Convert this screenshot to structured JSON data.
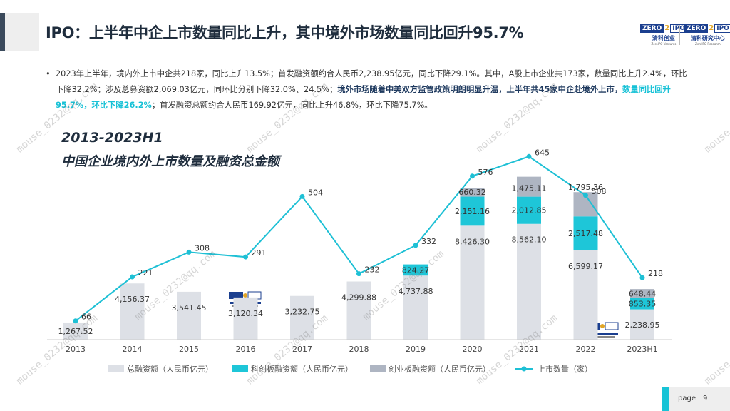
{
  "header": {
    "title": "IPO：上半年中企上市数量同比上升，其中境外市场数量同比回升95.7%"
  },
  "logos": {
    "zero": "ZERO",
    "ipo": "IPO",
    "left_cn": "清科创业",
    "left_en": "ZeroIPO Ventures",
    "right_cn": "清科研究中心",
    "right_en": "ZeroIPO Research"
  },
  "bullet": {
    "dot": "•",
    "part1": "2023年上半年，境内外上市中企共218家，同比上升13.5%；首发融资额约合人民币2,238.95亿元，同比下降29.1%。其中，A股上市企业共173家，数量同比上升2.4%，环比下降32.2%；涉及总募资额2,069.03亿元，同环比分别下降32.0%、24.5%；",
    "part2": "境外市场随着中美双方监管政策明朗明显升温，上半年共45家中企赴境外上市，",
    "part3": "数量同比回升95.7%，环比下降26.2%",
    "part4": "；首发融资总额约合人民币169.92亿元，同比上升46.8%，环比下降75.7%。"
  },
  "chart_data": {
    "type": "bar",
    "title": "2013-2023H1",
    "subtitle": "中国企业境内外上市数量及融资总金额",
    "categories": [
      "2013",
      "2014",
      "2015",
      "2016",
      "2017",
      "2018",
      "2019",
      "2020",
      "2021",
      "2022",
      "2023H1"
    ],
    "series": [
      {
        "name": "总融资额（人民币亿元）",
        "type": "bar",
        "stack": "funding",
        "color": "#dde0e6",
        "values": [
          1267.52,
          4156.37,
          3541.45,
          3120.34,
          3232.75,
          4299.88,
          4737.88,
          8426.3,
          8562.1,
          6599.17,
          2238.95
        ]
      },
      {
        "name": "科创板融资额（人民币亿元）",
        "type": "bar",
        "stack": "funding",
        "color": "#1ec6d8",
        "values": [
          null,
          null,
          null,
          null,
          null,
          null,
          824.27,
          2151.16,
          2012.85,
          2517.48,
          853.35
        ]
      },
      {
        "name": "创业板融资额（人民币亿元）",
        "type": "bar",
        "stack": "funding",
        "color": "#aeb5c2",
        "values": [
          null,
          null,
          null,
          null,
          null,
          null,
          null,
          660.32,
          1475.11,
          1795.36,
          648.44
        ]
      },
      {
        "name": "上市数量（家）",
        "type": "line",
        "color": "#1ec0d5",
        "values": [
          66,
          221,
          308,
          291,
          504,
          232,
          332,
          576,
          645,
          508,
          218
        ]
      }
    ],
    "bar_value_labels": [
      "1,267.52",
      "4,156.37",
      "3,541.45",
      "3,120.34",
      "3,232.75",
      "4,299.88",
      "4,737.88",
      "8,426.30",
      "8,562.10",
      "6,599.17",
      "2,238.95"
    ],
    "star_labels": [
      "",
      "",
      "",
      "",
      "",
      "",
      "824.27",
      "2,151.16",
      "2,012.85",
      "2,517.48",
      "853.35"
    ],
    "gem_labels": [
      "",
      "",
      "",
      "",
      "",
      "",
      "",
      "660.32",
      "1,475.11",
      "1,795.36",
      "648.44"
    ],
    "line_labels": [
      "66",
      "221",
      "308",
      "291",
      "504",
      "232",
      "332",
      "576",
      "645",
      "508",
      "218"
    ],
    "legend_position": "bottom",
    "grid": false
  },
  "watermark": {
    "text": "mouse_0232@qq.com"
  },
  "footer": {
    "page_label": "page",
    "page_number": "9"
  }
}
